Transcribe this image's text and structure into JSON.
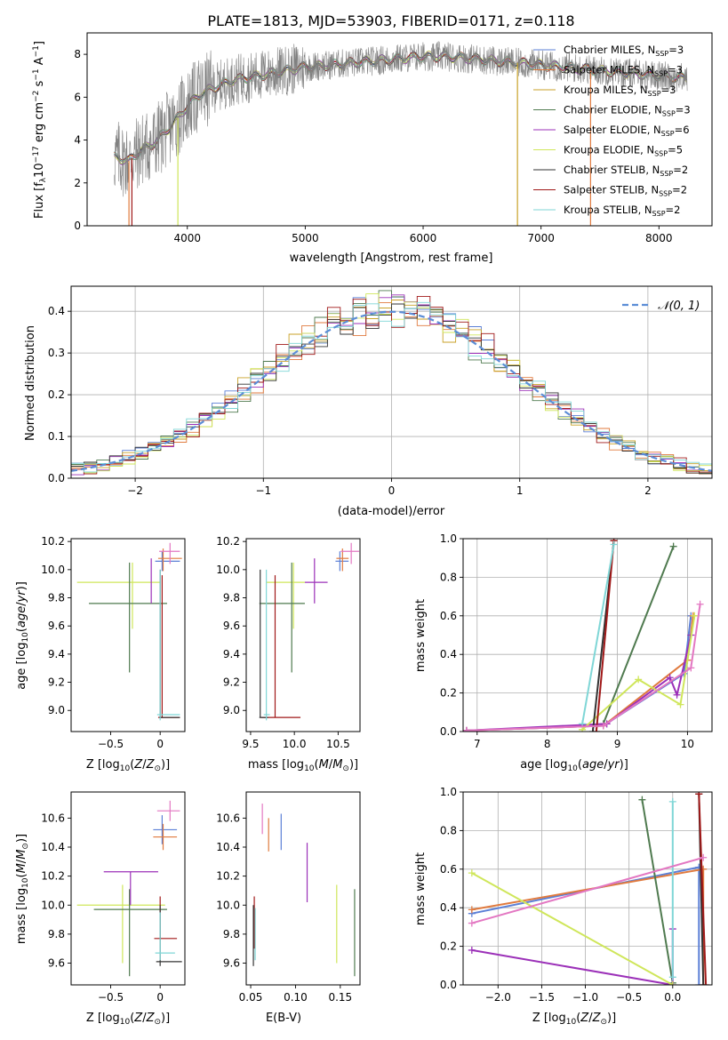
{
  "figure_title": "PLATE=1813, MJD=53903, FIBERID=0171, z=0.118",
  "colors": {
    "Chabrier MILES": "#5b7fd6",
    "Salpeter MILES": "#e07a3e",
    "Kroupa MILES": "#c9a227",
    "Chabrier ELODIE": "#4f7a4f",
    "Salpeter ELODIE": "#9b30b8",
    "Kroupa ELODIE": "#cfe65a",
    "Chabrier STELIB": "#333333",
    "Salpeter STELIB": "#a01818",
    "Kroupa STELIB": "#7fd6d6",
    "pink": "#e377c2",
    "data": "#808080",
    "normal": "#5b8dd6"
  },
  "chart_data": [
    {
      "id": "spectrum",
      "type": "line",
      "xlabel": "wavelength [Angstrom, rest frame]",
      "ylabel": "Flux [f_λ 10^-17 erg cm^-2 s^-1 A^-1]",
      "xlim": [
        3150,
        8450
      ],
      "ylim": [
        0,
        9
      ],
      "xticks": [
        4000,
        5000,
        6000,
        7000,
        8000
      ],
      "yticks": [
        0,
        2,
        4,
        6,
        8
      ],
      "legend_position": "right",
      "legend": [
        {
          "label": "Chabrier MILES, N_SSP=3",
          "color": "#5b7fd6"
        },
        {
          "label": "Salpeter MILES, N_SSP=3",
          "color": "#e07a3e"
        },
        {
          "label": "Kroupa MILES, N_SSP=3",
          "color": "#c9a227"
        },
        {
          "label": "Chabrier ELODIE, N_SSP=3",
          "color": "#4f7a4f"
        },
        {
          "label": "Salpeter ELODIE, N_SSP=6",
          "color": "#9b30b8"
        },
        {
          "label": "Kroupa ELODIE, N_SSP=5",
          "color": "#cfe65a"
        },
        {
          "label": "Chabrier STELIB, N_SSP=2",
          "color": "#333333"
        },
        {
          "label": "Salpeter STELIB, N_SSP=2",
          "color": "#a01818"
        },
        {
          "label": "Kroupa STELIB, N_SSP=2",
          "color": "#7fd6d6"
        }
      ],
      "model_continuum": {
        "x": [
          3400,
          3500,
          3600,
          3700,
          3800,
          3900,
          4000,
          4100,
          4200,
          4400,
          4600,
          4800,
          5000,
          5200,
          5400,
          5600,
          5800,
          6000,
          6200,
          6400,
          6600,
          6800,
          7000,
          7200,
          7400,
          7600,
          7800,
          8000,
          8200
        ],
        "y": [
          3.2,
          3.0,
          3.5,
          3.8,
          4.3,
          4.9,
          5.6,
          6.1,
          6.4,
          6.8,
          7.0,
          7.2,
          7.4,
          7.5,
          7.6,
          7.7,
          7.8,
          7.9,
          7.9,
          7.8,
          7.7,
          7.6,
          7.5,
          7.4,
          7.3,
          7.2,
          7.1,
          7.0,
          6.9
        ]
      }
    },
    {
      "id": "residuals",
      "type": "line",
      "xlabel": "(data-model)/error",
      "ylabel": "Normed distribution",
      "xlim": [
        -2.5,
        2.5
      ],
      "ylim": [
        0,
        0.46
      ],
      "xticks": [
        -2,
        -1,
        0,
        1,
        2
      ],
      "yticks": [
        0.0,
        0.1,
        0.2,
        0.3,
        0.4
      ],
      "grid": true,
      "legend_position": "top-right",
      "legend": [
        {
          "label": "𝒩(0, 1)",
          "color": "#5b8dd6",
          "style": "dashed"
        }
      ],
      "normal_curve": {
        "mean": 0,
        "sigma": 1
      }
    },
    {
      "id": "age_vs_Z",
      "type": "scatter",
      "xlabel": "Z [log10(Z/Z⊙)]",
      "ylabel": "age [log10(age/yr)]",
      "xlim": [
        -0.9,
        0.25
      ],
      "ylim": [
        8.85,
        10.22
      ],
      "xticks": [
        -0.5,
        0.0
      ],
      "yticks": [
        9.0,
        9.2,
        9.4,
        9.6,
        9.8,
        10.0,
        10.2
      ]
    },
    {
      "id": "age_vs_mass",
      "type": "scatter",
      "xlabel": "mass [log10(M/M⊙)]",
      "xlim": [
        9.45,
        10.75
      ],
      "ylim": [
        8.85,
        10.22
      ],
      "xticks": [
        9.5,
        10.0,
        10.5
      ],
      "yticks": [
        9.0,
        9.2,
        9.4,
        9.6,
        9.8,
        10.0,
        10.2
      ]
    },
    {
      "id": "weight_vs_age",
      "type": "line",
      "xlabel": "age [log10(age/yr)]",
      "ylabel": "mass weight",
      "xlim": [
        6.8,
        10.35
      ],
      "ylim": [
        0,
        1
      ],
      "xticks": [
        7,
        8,
        9,
        10
      ],
      "yticks": [
        0.0,
        0.2,
        0.4,
        0.6,
        0.8,
        1.0
      ],
      "grid": true
    },
    {
      "id": "mass_vs_Z",
      "type": "scatter",
      "xlabel": "Z [log10(Z/Z⊙)]",
      "ylabel": "mass [log10(M/M⊙)]",
      "xlim": [
        -0.9,
        0.25
      ],
      "ylim": [
        9.45,
        10.78
      ],
      "xticks": [
        -0.5,
        0.0
      ],
      "yticks": [
        9.6,
        9.8,
        10.0,
        10.2,
        10.4,
        10.6
      ]
    },
    {
      "id": "mass_vs_ebv",
      "type": "scatter",
      "xlabel": "E(B-V)",
      "xlim": [
        0.045,
        0.172
      ],
      "ylim": [
        9.45,
        10.78
      ],
      "xticks": [
        0.05,
        0.1,
        0.15
      ],
      "yticks": [
        9.6,
        9.8,
        10.0,
        10.2,
        10.4,
        10.6
      ]
    },
    {
      "id": "weight_vs_Z",
      "type": "line",
      "xlabel": "Z [log10(Z/Z⊙)]",
      "ylabel": "mass weight",
      "xlim": [
        -2.4,
        0.45
      ],
      "ylim": [
        0,
        1
      ],
      "xticks": [
        -2.0,
        -1.5,
        -1.0,
        -0.5,
        0.0
      ],
      "yticks": [
        0.0,
        0.2,
        0.4,
        0.6,
        0.8,
        1.0
      ],
      "grid": true
    }
  ]
}
